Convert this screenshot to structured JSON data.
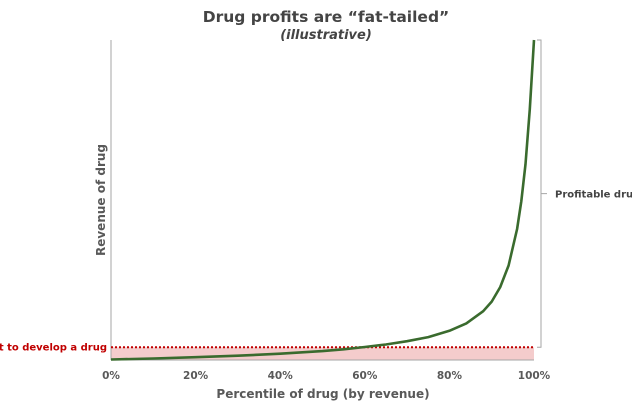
{
  "chart_data": {
    "type": "line",
    "title": "Drug profits are “fat-tailed”",
    "subtitle": "(illustrative)",
    "xlabel": "Percentile of drug (by revenue)",
    "ylabel": "Revenue of drug",
    "xlim": [
      0,
      100
    ],
    "x_ticks": [
      "0%",
      "20%",
      "40%",
      "60%",
      "80%",
      "100%"
    ],
    "x_tick_values": [
      0,
      20,
      40,
      60,
      80,
      100
    ],
    "grid": false,
    "series": [
      {
        "color": "#3a6b2e",
        "x": [
          0,
          10,
          20,
          30,
          40,
          50,
          55,
          60,
          65,
          70,
          75,
          80,
          84,
          88,
          90,
          92,
          94,
          96,
          97,
          98,
          99,
          100
        ],
        "y": [
          0.2,
          0.6,
          1.1,
          1.7,
          2.5,
          3.5,
          4.2,
          5.1,
          6.1,
          7.4,
          9.0,
          11.5,
          14.4,
          19.2,
          23.0,
          28.7,
          37.2,
          51.6,
          62.5,
          77.1,
          98.8,
          126.0
        ]
      }
    ],
    "ylim": [
      0,
      126
    ],
    "cost_line": {
      "label": "Cost to develop a drug",
      "value": 5.0,
      "color": "#c00000",
      "fill": "#f4cccc"
    },
    "bracket": {
      "label": "Profitable drugs"
    }
  }
}
